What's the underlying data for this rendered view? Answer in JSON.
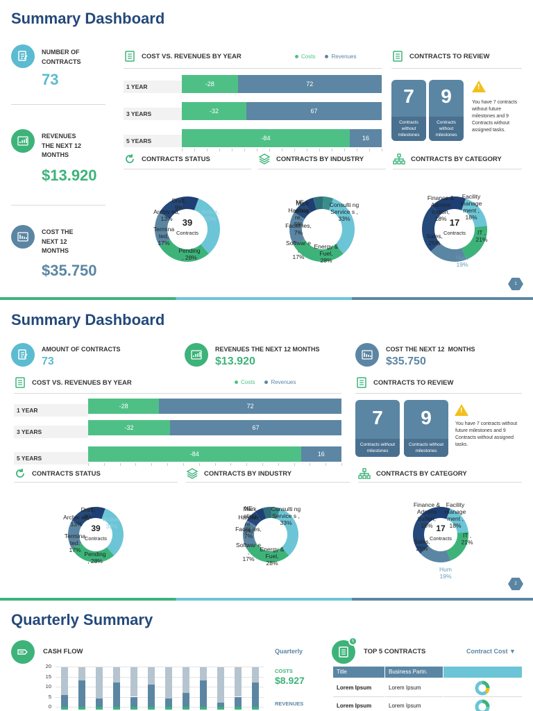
{
  "slides": [
    {
      "title": "Summary Dashboard",
      "kpis": [
        {
          "label1": "NUMBER OF",
          "label2": "CONTRACTS",
          "label3": "",
          "value": "73",
          "color": "#5bbbd0"
        },
        {
          "label1": "REVENUES",
          "label2": "THE NEXT 12",
          "label3": "MONTHS",
          "value": "$13.920",
          "color": "#3db37a"
        },
        {
          "label1": "COST THE",
          "label2": "NEXT 12",
          "label3": "MONTHS",
          "value": "$35.750",
          "color": "#5b86a3"
        }
      ],
      "page": "1"
    },
    {
      "title": "Summary Dashboard",
      "kpis": [
        {
          "label": "AMOUNT OF CONTRACTS",
          "value": "73"
        },
        {
          "label": "REVENUES THE NEXT 12 MONTHS",
          "value": "$13.920"
        },
        {
          "label": "COST THE NEXT 12  MONTHS",
          "value": "$35.750"
        }
      ],
      "page": "2"
    }
  ],
  "sections": {
    "cost_vs_revenues": "COST VS. REVENUES BY YEAR",
    "contracts_to_review": "CONTRACTS TO REVIEW",
    "contracts_status": "CONTRACTS STATUS",
    "contracts_by_industry": "CONTRACTS BY INDUSTRY",
    "contracts_by_category": "CONTRACTS BY CATEGORY"
  },
  "legend": {
    "costs": "Costs",
    "revenues": "Revenues",
    "costs_color": "#4ec086",
    "revenues_color": "#5c86a3"
  },
  "chart_data": [
    {
      "type": "bar",
      "categories": [
        "1 YEAR",
        "3 YEARS",
        "5 YEARS"
      ],
      "series": [
        {
          "name": "Costs",
          "values": [
            -28,
            -32,
            -84
          ]
        },
        {
          "name": "Revenues",
          "values": [
            72,
            67,
            16
          ]
        }
      ]
    },
    {
      "type": "pie",
      "center_value": "39",
      "center_label": "Contracts",
      "slices": [
        {
          "label": "Active,",
          "value": 33,
          "pct": "33%",
          "color": "#6cc5d6"
        },
        {
          "label": "Pending",
          "value": 28,
          "pct": ", 28%",
          "color": "#3db37a"
        },
        {
          "label": "Termina ted,",
          "value": 17,
          "pct": "17%",
          "color": "#5b86a3"
        },
        {
          "label": "Archiv ed,",
          "value": 13,
          "pct": "13%",
          "color": "#24497a"
        },
        {
          "label": "Draft,",
          "value": 9,
          "pct": "9%",
          "color": "#1e3f73"
        }
      ]
    },
    {
      "type": "pie",
      "slices": [
        {
          "label": "Consulti ng Service s ,",
          "value": 33,
          "pct": "33%",
          "color": "#6cc5d6"
        },
        {
          "label": "Energy & Fuel,",
          "value": 28,
          "pct": "28%",
          "color": "#3db37a"
        },
        {
          "label": "Softwar e ,",
          "value": 17,
          "pct": "17%",
          "color": "#5b86a3"
        },
        {
          "label": "Facilit ies,",
          "value": 7,
          "pct": "7%",
          "color": "#24497a"
        },
        {
          "label": "Hardwa re,",
          "value": 5,
          "pct": "5%",
          "color": "#1e3f73"
        },
        {
          "label": "Mark eting",
          "value": 5,
          "pct": "",
          "color": "#2f6f7a"
        },
        {
          "label": "NE",
          "value": 5,
          "pct": "",
          "color": "#3a8f8a"
        }
      ]
    },
    {
      "type": "pie",
      "center_value": "17",
      "center_label": "Contracts",
      "slices": [
        {
          "label": "Facility manage ment ,",
          "value": 18,
          "pct": "18%",
          "color": "#6cc5d6"
        },
        {
          "label": "IT ,",
          "value": 21,
          "pct": "21%",
          "color": "#3db37a"
        },
        {
          "label": "Hum",
          "value": 19,
          "pct": "19%",
          "color": "#5b86a3"
        },
        {
          "label": "Sales,",
          "value": 25,
          "pct": "25%",
          "color": "#24497a"
        },
        {
          "label": "Finance & Admins tration,",
          "value": 18,
          "pct": "18%",
          "color": "#1e3f73"
        }
      ]
    },
    {
      "type": "bar",
      "title": "CASH FLOW",
      "yticks": [
        "20",
        "15",
        "10",
        "5",
        "0"
      ],
      "ylim": [
        0,
        20
      ],
      "values": [
        6,
        13,
        4,
        12,
        5,
        11,
        4,
        7,
        13,
        2,
        5,
        12
      ]
    }
  ],
  "review": {
    "count1": "7",
    "sub1": "Contracts without milestones",
    "count2": "9",
    "sub2": "Contracts without milestones",
    "note1": "You have 7 contracts without future milestones and 9 Contracts without assigned tasks.",
    "note2": "You have 7 contracts without future milestones and 9 Contracts without assigned tasks."
  },
  "quarterly": {
    "title": "Quarterly Summary",
    "cash_flow": "CASH FLOW",
    "period": "Quarterly",
    "costs_label": "COSTS",
    "costs_value": "$8.927",
    "revenues_label": "REVENUES",
    "top5": "TOP 5 CONTRACTS",
    "top5_badge": "5",
    "sort": "Contract Cost",
    "table_headers": [
      "Title",
      "Business  Partn."
    ],
    "rows": [
      {
        "title": "Lorem  Ipsum",
        "partner": "Lorem Ipsum"
      },
      {
        "title": "Lorem  Ipsum",
        "partner": "Lorem Ipsum"
      }
    ]
  }
}
